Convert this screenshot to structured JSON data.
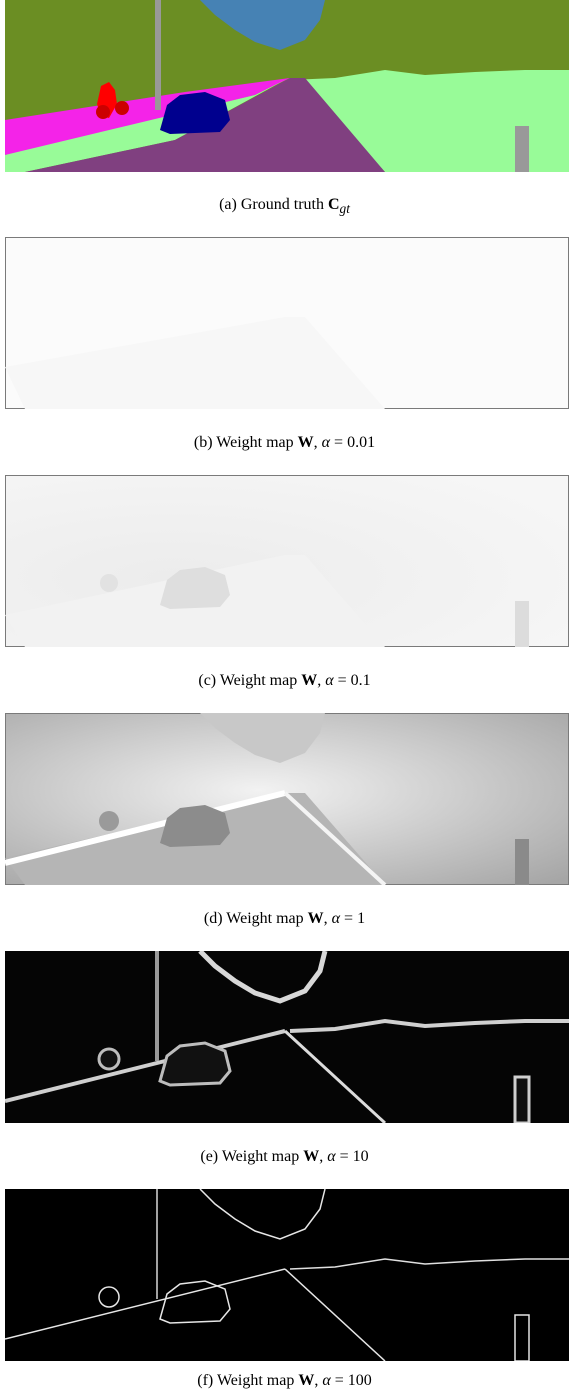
{
  "figure": {
    "panels": [
      {
        "id": "a",
        "tag": "(a)",
        "text": "Ground truth",
        "symbol": "C",
        "subscript": "gt",
        "alpha": null
      },
      {
        "id": "b",
        "tag": "(b)",
        "text": "Weight map",
        "symbol": "W",
        "alpha": "0.01"
      },
      {
        "id": "c",
        "tag": "(c)",
        "text": "Weight map",
        "symbol": "W",
        "alpha": "0.1"
      },
      {
        "id": "d",
        "tag": "(d)",
        "text": "Weight map",
        "symbol": "W",
        "alpha": "1"
      },
      {
        "id": "e",
        "tag": "(e)",
        "text": "Weight map",
        "symbol": "W",
        "alpha": "10"
      },
      {
        "id": "f",
        "tag": "(f)",
        "text": "Weight map",
        "symbol": "W",
        "alpha": "100"
      }
    ],
    "colors": {
      "vegetation": "#6b8e23",
      "sky": "#4682b4",
      "road": "#804080",
      "sidewalk": "#f423e8",
      "terrain": "#98fb98",
      "car": "#00008e",
      "rider": "#ff0000",
      "pole": "#999999"
    }
  }
}
